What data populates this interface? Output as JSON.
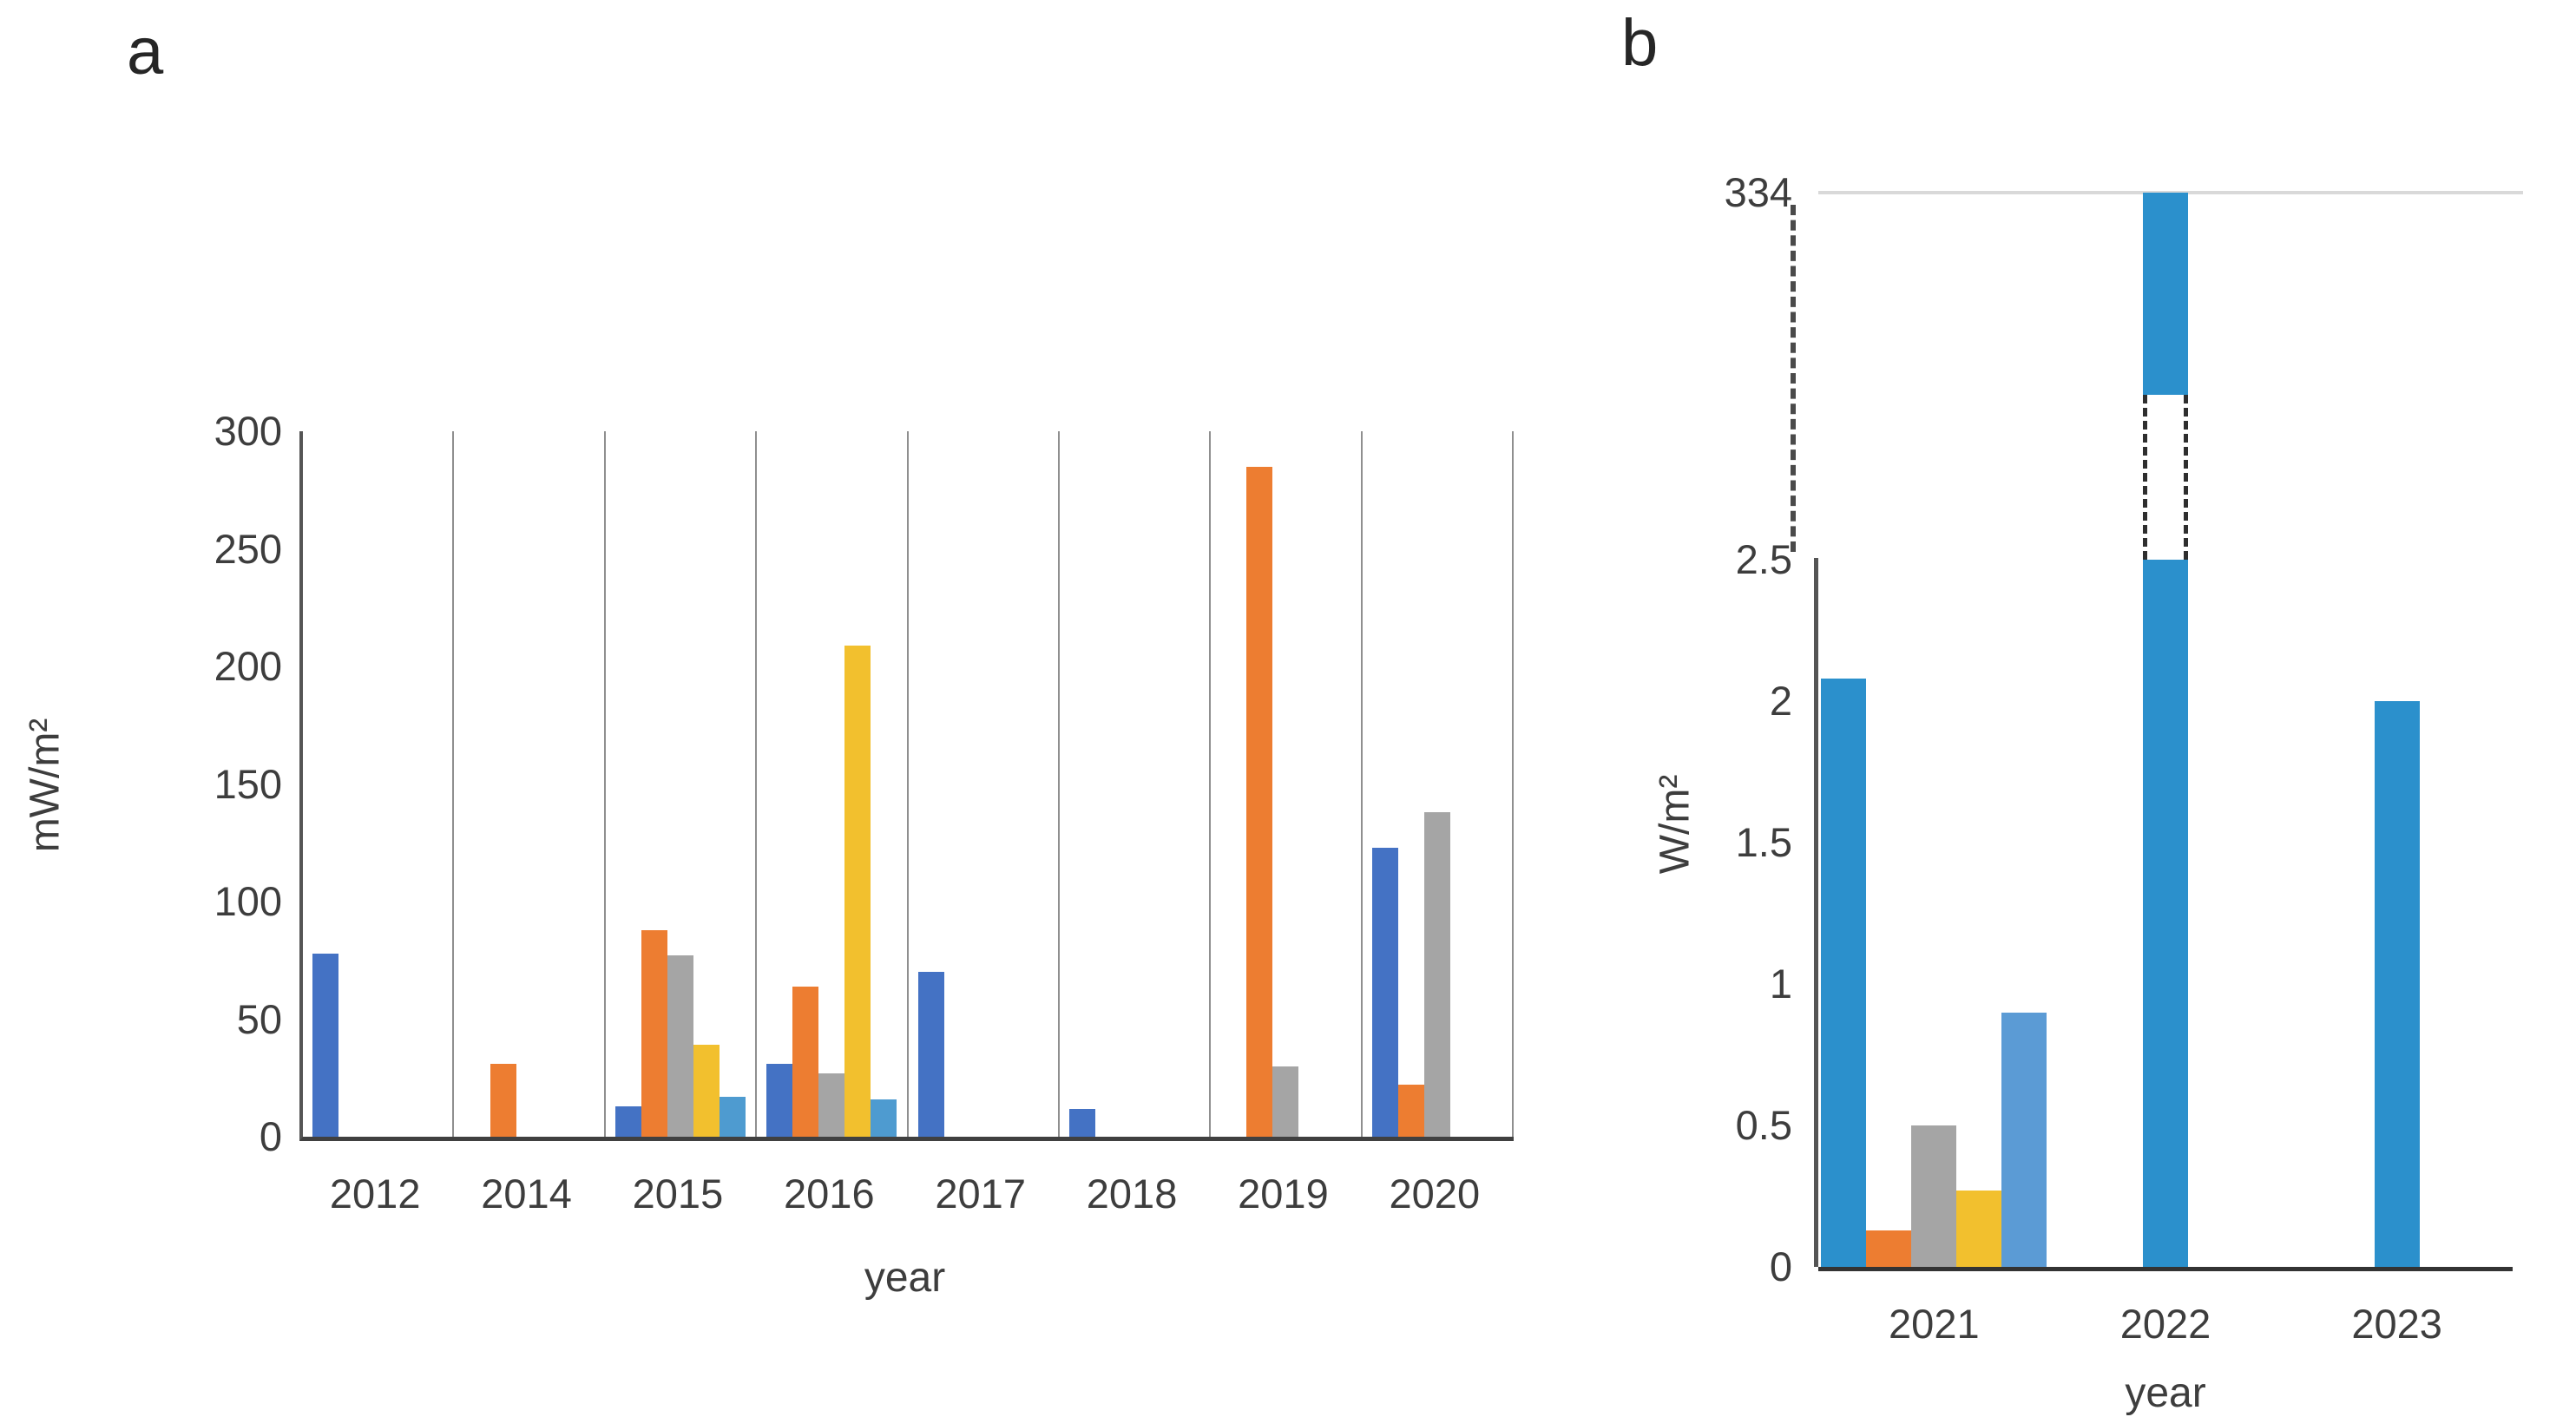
{
  "figure": {
    "background": "#ffffff",
    "text_color": "#3d3d3d"
  },
  "chart_data": [
    {
      "type": "bar",
      "panel_label": "a",
      "title": "",
      "xlabel": "year",
      "ylabel": "mW/m²",
      "ylim": [
        0,
        300
      ],
      "yticks": [
        0,
        50,
        100,
        150,
        200,
        250,
        300
      ],
      "grid": "vertical-separators-between-groups",
      "legend": "none",
      "categories": [
        "2012",
        "2014",
        "2015",
        "2016",
        "2017",
        "2018",
        "2019",
        "2020"
      ],
      "series": [
        {
          "name": "series-1-blue",
          "color": "#4472C4",
          "values": [
            78,
            null,
            13,
            31,
            70,
            12,
            null,
            123
          ]
        },
        {
          "name": "series-2-orange",
          "color": "#ED7D31",
          "values": [
            null,
            31,
            88,
            64,
            null,
            null,
            285,
            22
          ]
        },
        {
          "name": "series-3-gray",
          "color": "#A5A5A5",
          "values": [
            null,
            null,
            77,
            27,
            null,
            null,
            30,
            138
          ]
        },
        {
          "name": "series-4-yellow",
          "color": "#F2C02E",
          "values": [
            null,
            null,
            39,
            209,
            null,
            null,
            null,
            null
          ]
        },
        {
          "name": "series-5-lightblue",
          "color": "#4E9BD0",
          "values": [
            null,
            null,
            17,
            16,
            null,
            null,
            null,
            null
          ]
        }
      ]
    },
    {
      "type": "bar",
      "panel_label": "b",
      "title": "",
      "xlabel": "year",
      "ylabel": "W/m²",
      "ylim_lower": [
        0,
        2.5
      ],
      "yticks_lower": [
        "0",
        "0.5",
        "1",
        "1.5",
        "2",
        "2.5"
      ],
      "ytick_top": "334",
      "axis_break": {
        "from": 2.5,
        "to": 334,
        "style": "dashed"
      },
      "grid": "top-gridline-only",
      "legend": "none",
      "categories": [
        "2021",
        "2022",
        "2023"
      ],
      "series": [
        {
          "name": "series-1-blue",
          "color": "#2B90CC",
          "values": [
            2.08,
            334,
            2.0
          ],
          "broken": [
            false,
            true,
            false
          ]
        },
        {
          "name": "series-2-orange",
          "color": "#ED7D31",
          "values": [
            0.13,
            null,
            null
          ]
        },
        {
          "name": "series-3-gray",
          "color": "#A5A5A5",
          "values": [
            0.5,
            null,
            null
          ]
        },
        {
          "name": "series-4-yellow",
          "color": "#F2C02E",
          "values": [
            0.27,
            null,
            null
          ]
        },
        {
          "name": "series-5-lightblue",
          "color": "#5B9BD5",
          "values": [
            0.9,
            null,
            null
          ]
        }
      ]
    }
  ]
}
